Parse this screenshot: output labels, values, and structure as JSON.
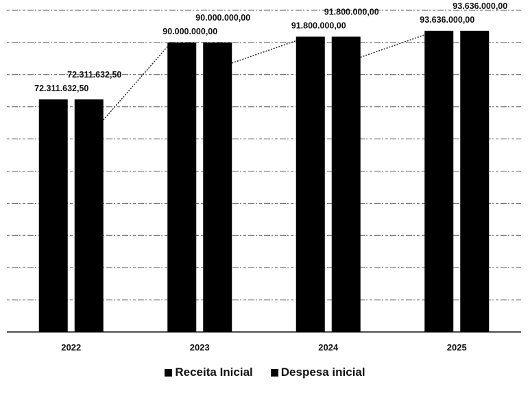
{
  "chart_data": {
    "type": "bar",
    "categories": [
      "2022",
      "2023",
      "2024",
      "2025"
    ],
    "series": [
      {
        "name": "Receita Inicial",
        "values": [
          72311632.5,
          90000000.0,
          91800000.0,
          93636000.0
        ],
        "labels": [
          "72.311.632,50",
          "90.000.000,00",
          "91.800.000,00",
          "93.636.000,00"
        ],
        "color": "#000000"
      },
      {
        "name": "Despesa inicial",
        "values": [
          72311632.5,
          90000000.0,
          91800000.0,
          93636000.0
        ],
        "labels": [
          "72.311.632,50",
          "90.000.000,00",
          "91.800.000,00",
          "93.636.000,00"
        ],
        "color": "#000000"
      }
    ],
    "ylim": [
      0,
      100000000
    ],
    "grid": true,
    "legend": "bottom"
  }
}
